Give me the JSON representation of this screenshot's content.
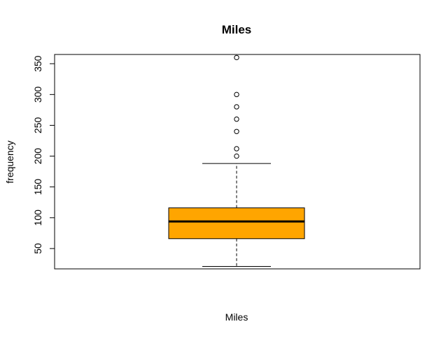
{
  "chart_data": {
    "type": "boxplot",
    "title": "Miles",
    "xlabel": "Miles",
    "ylabel": "frequency",
    "ylim": [
      17,
      365
    ],
    "yticks": [
      50,
      100,
      150,
      200,
      250,
      300,
      350
    ],
    "box_color": "#FFA500",
    "grid": false,
    "legend": "none",
    "stats": {
      "min": 21,
      "q1": 66,
      "median": 94,
      "q3": 116,
      "max": 188
    },
    "outliers": [
      200,
      212,
      240,
      260,
      280,
      300,
      360
    ]
  }
}
